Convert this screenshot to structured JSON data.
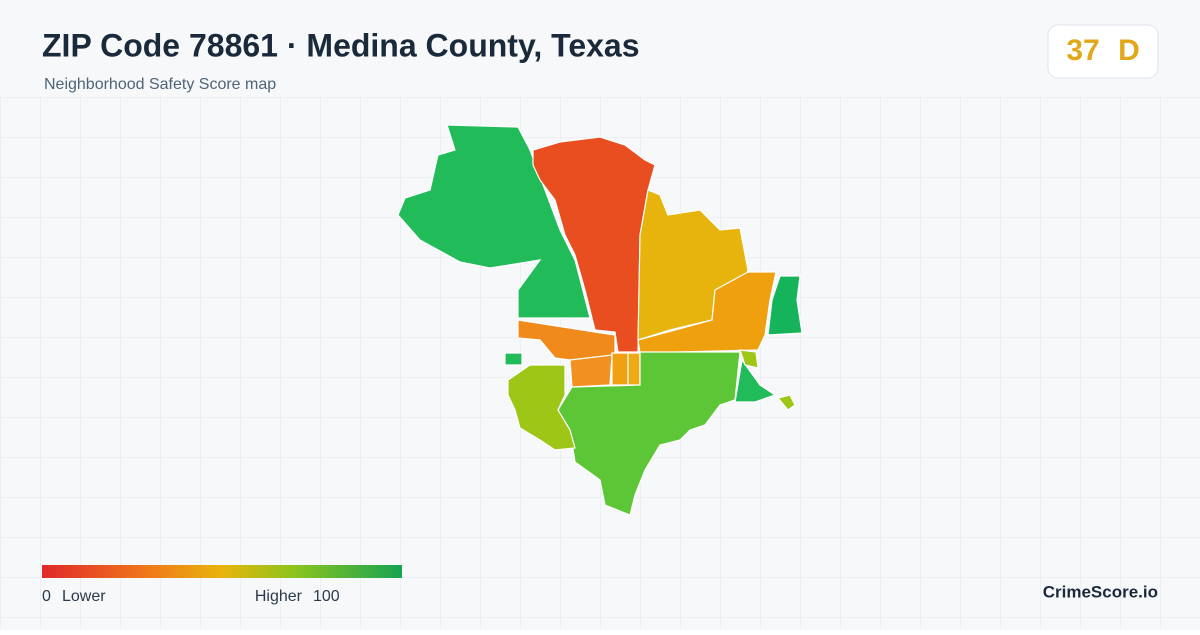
{
  "header": {
    "title": "ZIP Code 78861 · Medina County, Texas",
    "subtitle": "Neighborhood Safety Score map"
  },
  "score": {
    "value": 37,
    "grade": "D"
  },
  "legend": {
    "min": 0,
    "min_label": "Lower",
    "max_label": "Higher",
    "max": 100
  },
  "brand": "CrimeScore.io"
}
